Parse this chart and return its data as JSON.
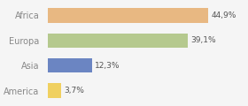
{
  "categories": [
    "America",
    "Asia",
    "Europa",
    "Africa"
  ],
  "values": [
    3.7,
    12.3,
    39.1,
    44.9
  ],
  "labels": [
    "3,7%",
    "12,3%",
    "39,1%",
    "44,9%"
  ],
  "bar_colors": [
    "#f0d060",
    "#6b85c2",
    "#b5c98e",
    "#e8b882"
  ],
  "background_color": "#f5f5f5",
  "text_color": "#888888",
  "label_color": "#555555",
  "xlim": [
    0,
    55
  ],
  "bar_height": 0.58
}
